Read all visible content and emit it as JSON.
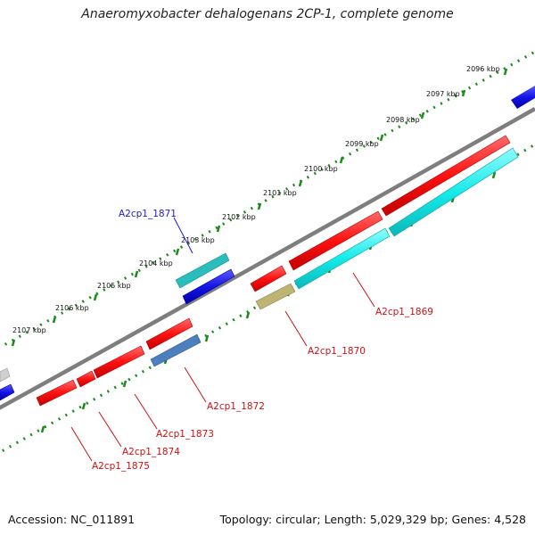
{
  "title": "Anaeromyxobacter dehalogenans 2CP-1, complete genome",
  "footer": {
    "accession": "Accession: NC_011891",
    "summary": "Topology: circular; Length: 5,029,329 bp; Genes: 4,528"
  },
  "scale": {
    "unit": "kbp",
    "ticks": [
      "2096 kbp",
      "2097 kbp",
      "2098 kbp",
      "2099 kbp",
      "2100 kbp",
      "2101 kbp",
      "2102 kbp",
      "2103 kbp",
      "2104 kbp",
      "2105 kbp",
      "2106 kbp",
      "2107 kbp"
    ]
  },
  "genes": [
    {
      "label": "A2cp1_1869",
      "color": "#e8323a"
    },
    {
      "label": "A2cp1_1870",
      "color": "#e8323a"
    },
    {
      "label": "A2cp1_1871",
      "color": "#1a1ad0"
    },
    {
      "label": "A2cp1_1872",
      "color": "#e8323a"
    },
    {
      "label": "A2cp1_1873",
      "color": "#e8323a"
    },
    {
      "label": "A2cp1_1874",
      "color": "#e8323a"
    },
    {
      "label": "A2cp1_1875",
      "color": "#e8323a"
    }
  ],
  "colors": {
    "backbone": "#808080",
    "cds_red": "#ff1a1a",
    "cds_blue": "#1f1fe0",
    "rna_cyan": "#22e6e6",
    "teal": "#2bbcbc",
    "olive": "#b8b070",
    "steel": "#4a7fbf",
    "gray": "#c8c8c8",
    "tick_green": "#1a8a1a"
  }
}
